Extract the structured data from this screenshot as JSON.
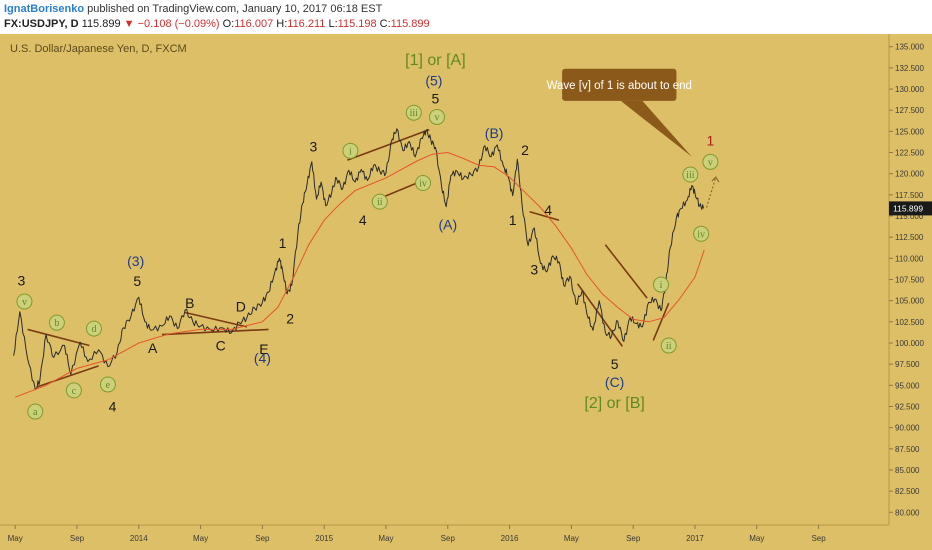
{
  "header": {
    "author": "IgnatBorisenko",
    "published_text": "published on TradingView.com, January 10, 2017 06:18 EST",
    "symbol": "FX:USDJPY, D",
    "last": "115.899",
    "change_arrow": "▼",
    "change": "−0.108 (−0.09%)",
    "open_label": "O:",
    "open": "116.007",
    "high_label": "H:",
    "high": "116.211",
    "low_label": "L:",
    "low": "115.198",
    "close_label": "C:",
    "close": "115.899"
  },
  "colors": {
    "background": "#ddbf67",
    "price": "#2b2b2b",
    "ma": "#e8552b",
    "trendline": "#7a3b14",
    "circle_fill": "#cdd07a",
    "circle_stroke": "#7f9a2b",
    "green_text": "#5f8a22",
    "blue_text": "#1d3d8a",
    "dark_text": "#1a1a1a",
    "red_text": "#b01c1c",
    "callout": "#8b5a1a",
    "price_tag": "#1a1a1a"
  },
  "chart_data": {
    "type": "line",
    "title": "U.S. Dollar/Japanese Yen, D, FXCM",
    "x_unit": "months since Jan 2013",
    "ylim": [
      78.5,
      136.5
    ],
    "y_ticks": [
      80,
      82.5,
      85,
      87.5,
      90,
      92.5,
      95,
      97.5,
      100,
      102.5,
      105,
      107.5,
      110,
      112.5,
      115,
      117.5,
      120,
      122.5,
      125,
      127.5,
      130,
      132.5,
      135
    ],
    "y_tick_labels": [
      "80.000",
      "82.500",
      "85.000",
      "87.500",
      "90.000",
      "92.500",
      "95.000",
      "97.500",
      "100.000",
      "102.500",
      "105.000",
      "107.500",
      "110.000",
      "112.500",
      "115.000",
      "117.500",
      "120.000",
      "122.500",
      "125.000",
      "127.500",
      "130.000",
      "132.500",
      "135.000"
    ],
    "x_ticks": [
      {
        "x": 4,
        "label": "May"
      },
      {
        "x": 8,
        "label": "Sep"
      },
      {
        "x": 12,
        "label": "2014"
      },
      {
        "x": 16,
        "label": "May"
      },
      {
        "x": 20,
        "label": "Sep"
      },
      {
        "x": 24,
        "label": "2015"
      },
      {
        "x": 28,
        "label": "May"
      },
      {
        "x": 32,
        "label": "Sep"
      },
      {
        "x": 36,
        "label": "2016"
      },
      {
        "x": 40,
        "label": "May"
      },
      {
        "x": 44,
        "label": "Sep"
      },
      {
        "x": 48,
        "label": "2017"
      },
      {
        "x": 52,
        "label": "May"
      },
      {
        "x": 56,
        "label": "Sep"
      }
    ],
    "last_price_label": "115.899",
    "last_price": 115.899,
    "series": [
      {
        "role": "price",
        "points": [
          [
            3.9,
            98.5
          ],
          [
            4.3,
            103.7
          ],
          [
            4.8,
            98.2
          ],
          [
            5.3,
            94.5
          ],
          [
            5.6,
            95.6
          ],
          [
            6.0,
            101.0
          ],
          [
            6.5,
            98.3
          ],
          [
            7.2,
            99.7
          ],
          [
            7.6,
            96.3
          ],
          [
            8.2,
            100.1
          ],
          [
            8.7,
            97.8
          ],
          [
            9.4,
            99.2
          ],
          [
            10.0,
            97.2
          ],
          [
            10.6,
            98.9
          ],
          [
            11.0,
            101.8
          ],
          [
            11.5,
            103.2
          ],
          [
            12.0,
            105.4
          ],
          [
            12.4,
            102.5
          ],
          [
            12.8,
            101.5
          ],
          [
            13.5,
            102.0
          ],
          [
            14.0,
            103.2
          ],
          [
            14.5,
            101.7
          ],
          [
            15.0,
            103.9
          ],
          [
            15.5,
            102.5
          ],
          [
            16.0,
            102.0
          ],
          [
            16.7,
            101.5
          ],
          [
            17.4,
            101.8
          ],
          [
            18.0,
            101.2
          ],
          [
            18.5,
            102.4
          ],
          [
            19.0,
            103.0
          ],
          [
            19.5,
            104.1
          ],
          [
            20.0,
            104.8
          ],
          [
            20.4,
            106.0
          ],
          [
            20.8,
            108.3
          ],
          [
            21.1,
            110.0
          ],
          [
            21.3,
            108.6
          ],
          [
            21.6,
            105.8
          ],
          [
            21.9,
            106.8
          ],
          [
            22.3,
            113.0
          ],
          [
            22.6,
            116.5
          ],
          [
            22.9,
            118.9
          ],
          [
            23.2,
            121.4
          ],
          [
            23.5,
            117.0
          ],
          [
            23.8,
            119.0
          ],
          [
            24.1,
            116.2
          ],
          [
            24.5,
            117.9
          ],
          [
            24.8,
            119.5
          ],
          [
            25.2,
            118.2
          ],
          [
            25.6,
            120.4
          ],
          [
            26.0,
            119.0
          ],
          [
            26.4,
            120.5
          ],
          [
            26.8,
            119.2
          ],
          [
            27.2,
            121.0
          ],
          [
            27.6,
            120.3
          ],
          [
            28.0,
            120.1
          ],
          [
            28.4,
            124.1
          ],
          [
            28.7,
            125.3
          ],
          [
            29.1,
            122.7
          ],
          [
            29.5,
            123.8
          ],
          [
            29.9,
            122.0
          ],
          [
            30.3,
            124.2
          ],
          [
            30.6,
            125.1
          ],
          [
            30.9,
            124.0
          ],
          [
            31.2,
            123.1
          ],
          [
            31.6,
            118.5
          ],
          [
            31.9,
            116.1
          ],
          [
            32.2,
            119.8
          ],
          [
            32.6,
            120.3
          ],
          [
            33.0,
            119.4
          ],
          [
            33.5,
            119.9
          ],
          [
            34.0,
            120.8
          ],
          [
            34.4,
            123.3
          ],
          [
            34.8,
            122.0
          ],
          [
            35.2,
            123.4
          ],
          [
            35.6,
            120.9
          ],
          [
            35.9,
            119.7
          ],
          [
            36.2,
            117.4
          ],
          [
            36.5,
            121.7
          ],
          [
            36.8,
            116.5
          ],
          [
            37.2,
            111.5
          ],
          [
            37.6,
            113.6
          ],
          [
            38.0,
            109.4
          ],
          [
            38.4,
            108.4
          ],
          [
            38.8,
            110.3
          ],
          [
            39.2,
            109.6
          ],
          [
            39.5,
            106.8
          ],
          [
            39.9,
            107.9
          ],
          [
            40.3,
            104.6
          ],
          [
            40.7,
            106.2
          ],
          [
            41.0,
            103.5
          ],
          [
            41.4,
            101.5
          ],
          [
            41.8,
            105.0
          ],
          [
            42.2,
            101.2
          ],
          [
            42.6,
            100.8
          ],
          [
            43.0,
            102.6
          ],
          [
            43.4,
            100.2
          ],
          [
            43.8,
            103.0
          ],
          [
            44.2,
            102.3
          ],
          [
            44.6,
            101.9
          ],
          [
            45.0,
            104.8
          ],
          [
            45.4,
            105.2
          ],
          [
            45.8,
            103.8
          ],
          [
            46.1,
            106.9
          ],
          [
            46.4,
            111.3
          ],
          [
            46.8,
            114.8
          ],
          [
            47.1,
            115.9
          ],
          [
            47.5,
            116.9
          ],
          [
            47.8,
            118.6
          ],
          [
            48.0,
            117.7
          ],
          [
            48.3,
            116.2
          ],
          [
            48.55,
            115.9
          ]
        ]
      },
      {
        "role": "moving_average",
        "points": [
          [
            4.0,
            93.6
          ],
          [
            6.0,
            95.0
          ],
          [
            8.0,
            97.0
          ],
          [
            10.0,
            98.0
          ],
          [
            12.0,
            100.0
          ],
          [
            14.0,
            101.1
          ],
          [
            16.0,
            101.6
          ],
          [
            18.0,
            101.6
          ],
          [
            20.0,
            102.5
          ],
          [
            21.0,
            104.2
          ],
          [
            22.0,
            107.7
          ],
          [
            23.0,
            111.6
          ],
          [
            24.0,
            114.5
          ],
          [
            25.0,
            116.4
          ],
          [
            26.0,
            118.0
          ],
          [
            28.0,
            119.5
          ],
          [
            30.0,
            121.5
          ],
          [
            31.0,
            122.3
          ],
          [
            32.0,
            122.5
          ],
          [
            33.0,
            121.8
          ],
          [
            34.0,
            121.0
          ],
          [
            35.0,
            120.8
          ],
          [
            36.0,
            119.6
          ],
          [
            37.0,
            117.8
          ],
          [
            38.0,
            116.0
          ],
          [
            39.0,
            113.8
          ],
          [
            40.0,
            111.2
          ],
          [
            41.0,
            108.1
          ],
          [
            42.0,
            105.8
          ],
          [
            43.0,
            104.2
          ],
          [
            44.0,
            102.8
          ],
          [
            45.0,
            102.5
          ],
          [
            46.0,
            103.0
          ],
          [
            47.0,
            105.2
          ],
          [
            48.0,
            107.8
          ],
          [
            48.6,
            111.0
          ]
        ]
      }
    ],
    "trendlines": [
      [
        [
          4.8,
          101.6
        ],
        [
          8.8,
          99.7
        ]
      ],
      [
        [
          5.4,
          94.8
        ],
        [
          9.4,
          97.3
        ]
      ],
      [
        [
          13.5,
          101.0
        ],
        [
          20.4,
          101.6
        ]
      ],
      [
        [
          15.0,
          103.6
        ],
        [
          19.0,
          101.9
        ]
      ],
      [
        [
          25.5,
          121.6
        ],
        [
          30.8,
          125.2
        ]
      ],
      [
        [
          27.1,
          116.7
        ],
        [
          30.4,
          119.2
        ]
      ],
      [
        [
          40.4,
          107.0
        ],
        [
          43.3,
          99.6
        ]
      ],
      [
        [
          42.2,
          111.6
        ],
        [
          44.9,
          105.3
        ]
      ],
      [
        [
          37.3,
          115.5
        ],
        [
          39.2,
          114.5
        ]
      ],
      [
        [
          45.3,
          100.3
        ],
        [
          46.3,
          104.7
        ]
      ]
    ],
    "wave_labels": [
      {
        "text": "3",
        "x": 4.4,
        "y": 107.4,
        "style": "dark"
      },
      {
        "text": "v",
        "x": 4.6,
        "y": 104.9,
        "style": "circle"
      },
      {
        "text": "a",
        "x": 5.3,
        "y": 91.9,
        "style": "circle"
      },
      {
        "text": "b",
        "x": 6.7,
        "y": 102.4,
        "style": "circle"
      },
      {
        "text": "c",
        "x": 7.8,
        "y": 94.4,
        "style": "circle"
      },
      {
        "text": "d",
        "x": 9.1,
        "y": 101.7,
        "style": "circle"
      },
      {
        "text": "e",
        "x": 10.0,
        "y": 95.1,
        "style": "circle"
      },
      {
        "text": "4",
        "x": 10.3,
        "y": 92.5,
        "style": "dark"
      },
      {
        "text": "(3)",
        "x": 11.8,
        "y": 109.7,
        "style": "blue"
      },
      {
        "text": "5",
        "x": 11.9,
        "y": 107.3,
        "style": "dark"
      },
      {
        "text": "A",
        "x": 12.9,
        "y": 99.4,
        "style": "dark"
      },
      {
        "text": "B",
        "x": 15.3,
        "y": 104.7,
        "style": "dark"
      },
      {
        "text": "C",
        "x": 17.3,
        "y": 99.7,
        "style": "dark"
      },
      {
        "text": "D",
        "x": 18.6,
        "y": 104.3,
        "style": "dark"
      },
      {
        "text": "E",
        "x": 20.1,
        "y": 99.3,
        "style": "dark"
      },
      {
        "text": "(4)",
        "x": 20.0,
        "y": 98.2,
        "style": "blue"
      },
      {
        "text": "2",
        "x": 21.8,
        "y": 102.9,
        "style": "dark"
      },
      {
        "text": "1",
        "x": 21.3,
        "y": 111.8,
        "style": "dark"
      },
      {
        "text": "3",
        "x": 23.3,
        "y": 123.2,
        "style": "dark"
      },
      {
        "text": "4",
        "x": 26.5,
        "y": 114.5,
        "style": "dark"
      },
      {
        "text": "i",
        "x": 25.7,
        "y": 122.7,
        "style": "circle"
      },
      {
        "text": "ii",
        "x": 27.6,
        "y": 116.7,
        "style": "circle"
      },
      {
        "text": "iii",
        "x": 29.8,
        "y": 127.2,
        "style": "circle"
      },
      {
        "text": "iv",
        "x": 30.4,
        "y": 118.9,
        "style": "circle"
      },
      {
        "text": "v",
        "x": 31.3,
        "y": 126.7,
        "style": "circle"
      },
      {
        "text": "5",
        "x": 31.2,
        "y": 128.9,
        "style": "dark"
      },
      {
        "text": "(5)",
        "x": 31.1,
        "y": 131.0,
        "style": "blue"
      },
      {
        "text": "[1] or [A]",
        "x": 31.2,
        "y": 133.4,
        "style": "green"
      },
      {
        "text": "(A)",
        "x": 32.0,
        "y": 114.0,
        "style": "blue"
      },
      {
        "text": "(B)",
        "x": 35.0,
        "y": 124.8,
        "style": "blue"
      },
      {
        "text": "2",
        "x": 37.0,
        "y": 122.8,
        "style": "dark"
      },
      {
        "text": "1",
        "x": 36.2,
        "y": 114.5,
        "style": "dark"
      },
      {
        "text": "4",
        "x": 38.5,
        "y": 115.7,
        "style": "dark"
      },
      {
        "text": "3",
        "x": 37.6,
        "y": 108.7,
        "style": "dark"
      },
      {
        "text": "5",
        "x": 42.8,
        "y": 97.5,
        "style": "dark"
      },
      {
        "text": "(C)",
        "x": 42.8,
        "y": 95.4,
        "style": "blue"
      },
      {
        "text": "[2] or [B]",
        "x": 42.8,
        "y": 92.9,
        "style": "green"
      },
      {
        "text": "i",
        "x": 45.8,
        "y": 106.9,
        "style": "circle"
      },
      {
        "text": "ii",
        "x": 46.3,
        "y": 99.7,
        "style": "circle"
      },
      {
        "text": "iii",
        "x": 47.7,
        "y": 119.9,
        "style": "circle"
      },
      {
        "text": "iv",
        "x": 48.4,
        "y": 112.9,
        "style": "circle"
      },
      {
        "text": "v",
        "x": 49.0,
        "y": 121.4,
        "style": "circle"
      },
      {
        "text": "1",
        "x": 49.0,
        "y": 123.9,
        "style": "red"
      }
    ],
    "callout": {
      "text": "Wave [v] of 1 is about to end",
      "box": [
        [
          39.4,
          128.6
        ],
        [
          46.8,
          132.4
        ]
      ],
      "tail": [
        [
          43.2,
          128.6
        ],
        [
          44.6,
          128.6
        ],
        [
          47.8,
          122.0
        ]
      ]
    },
    "projection": [
      [
        48.75,
        116.0
      ],
      [
        49.35,
        119.6
      ]
    ]
  }
}
